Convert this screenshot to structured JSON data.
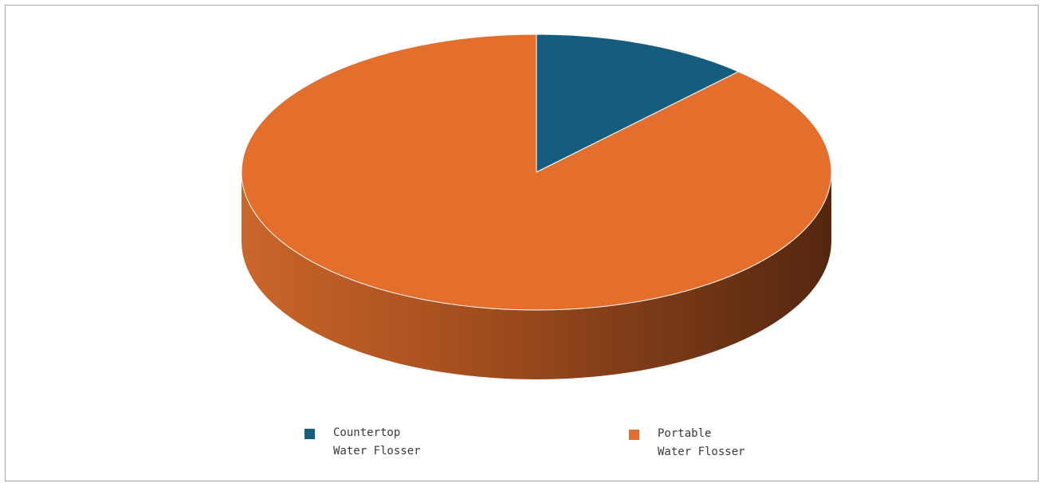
{
  "chart_data": {
    "type": "pie",
    "style": "3d",
    "title": "",
    "categories": [
      "Countertop Water Flosser",
      "Portable Water Flosser"
    ],
    "values": [
      12,
      88
    ],
    "unit": "percent (estimated from slice angles)",
    "colors": [
      "#145d7f",
      "#e46f2c"
    ],
    "legend_position": "bottom",
    "legend": [
      {
        "label": "Countertop\nWater Flosser",
        "color": "#145d7f"
      },
      {
        "label": "Portable\nWater Flosser",
        "color": "#e46f2c"
      }
    ]
  }
}
